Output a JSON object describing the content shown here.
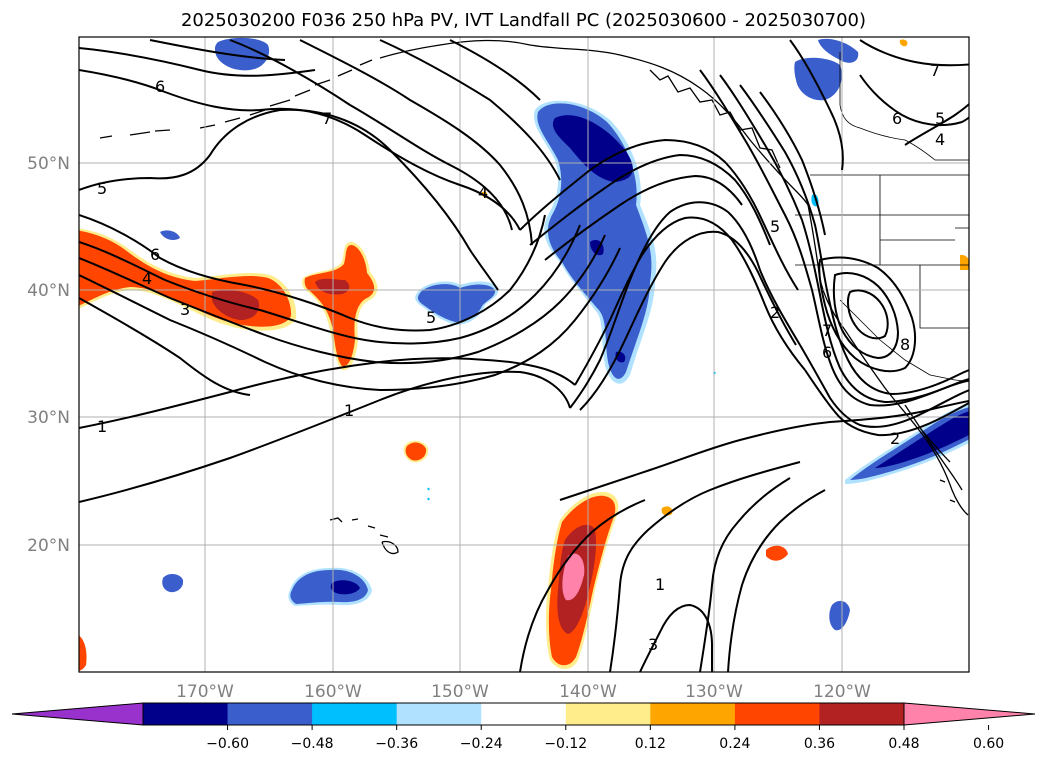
{
  "title": "2025030200 F036 250 hPa PV, IVT Landfall PC (2025030600 - 2025030700)",
  "map": {
    "lon_labels": [
      "170°W",
      "160°W",
      "150°W",
      "140°W",
      "130°W",
      "120°W"
    ],
    "lat_labels": [
      "50°N",
      "40°N",
      "30°N",
      "20°N"
    ]
  },
  "contour_labels": [
    "6",
    "7",
    "5",
    "6",
    "4",
    "3",
    "1",
    "5",
    "1",
    "4",
    "5",
    "2",
    "6",
    "7",
    "8",
    "2",
    "7",
    "6",
    "5",
    "4",
    "3",
    "1"
  ],
  "colorbar": {
    "ticks": [
      "−0.60",
      "−0.48",
      "−0.36",
      "−0.24",
      "−0.12",
      "0.12",
      "0.24",
      "0.36",
      "0.48",
      "0.60"
    ],
    "colors": [
      "#9932cc",
      "#00008b",
      "#3a5fcd",
      "#00bfff",
      "#b0e2ff",
      "#ffffff",
      "#ffec8b",
      "#ffa500",
      "#ff4500",
      "#b22222",
      "#ff82ab"
    ]
  },
  "palette": {
    "neg_deep": "#00008b",
    "neg_mid": "#3a5fcd",
    "neg_light": "#00bfff",
    "pos_light": "#ffec8b",
    "pos_mid": "#ffa500",
    "pos_strong": "#ff4500",
    "pos_deep": "#b22222",
    "pos_max": "#ff82ab"
  }
}
